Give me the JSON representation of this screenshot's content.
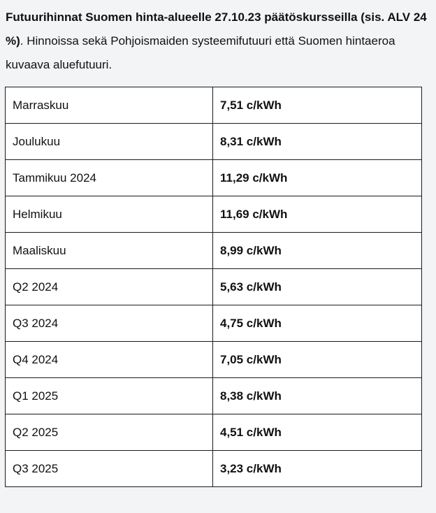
{
  "intro": {
    "bold": "Futuurihinnat Suomen hinta-alueelle 27.10.23 päätöskursseilla (sis. ALV 24 %)",
    "rest": ". Hinnoissa sekä Pohjoismaiden systeemifutuuri että Suomen hintaeroa kuvaava aluefutuuri."
  },
  "rows": [
    {
      "period": "Marraskuu",
      "price": "7,51 c/kWh"
    },
    {
      "period": "Joulukuu",
      "price": "8,31 c/kWh"
    },
    {
      "period": "Tammikuu 2024",
      "price": "11,29 c/kWh"
    },
    {
      "period": "Helmikuu",
      "price": "11,69 c/kWh"
    },
    {
      "period": "Maaliskuu",
      "price": "8,99 c/kWh"
    },
    {
      "period": "Q2 2024",
      "price": "5,63 c/kWh"
    },
    {
      "period": "Q3 2024",
      "price": "4,75 c/kWh"
    },
    {
      "period": "Q4 2024",
      "price": "7,05 c/kWh"
    },
    {
      "period": "Q1 2025",
      "price": "8,38 c/kWh"
    },
    {
      "period": "Q2 2025",
      "price": "4,51 c/kWh"
    },
    {
      "period": "Q3 2025",
      "price": "3,23 c/kWh"
    }
  ]
}
